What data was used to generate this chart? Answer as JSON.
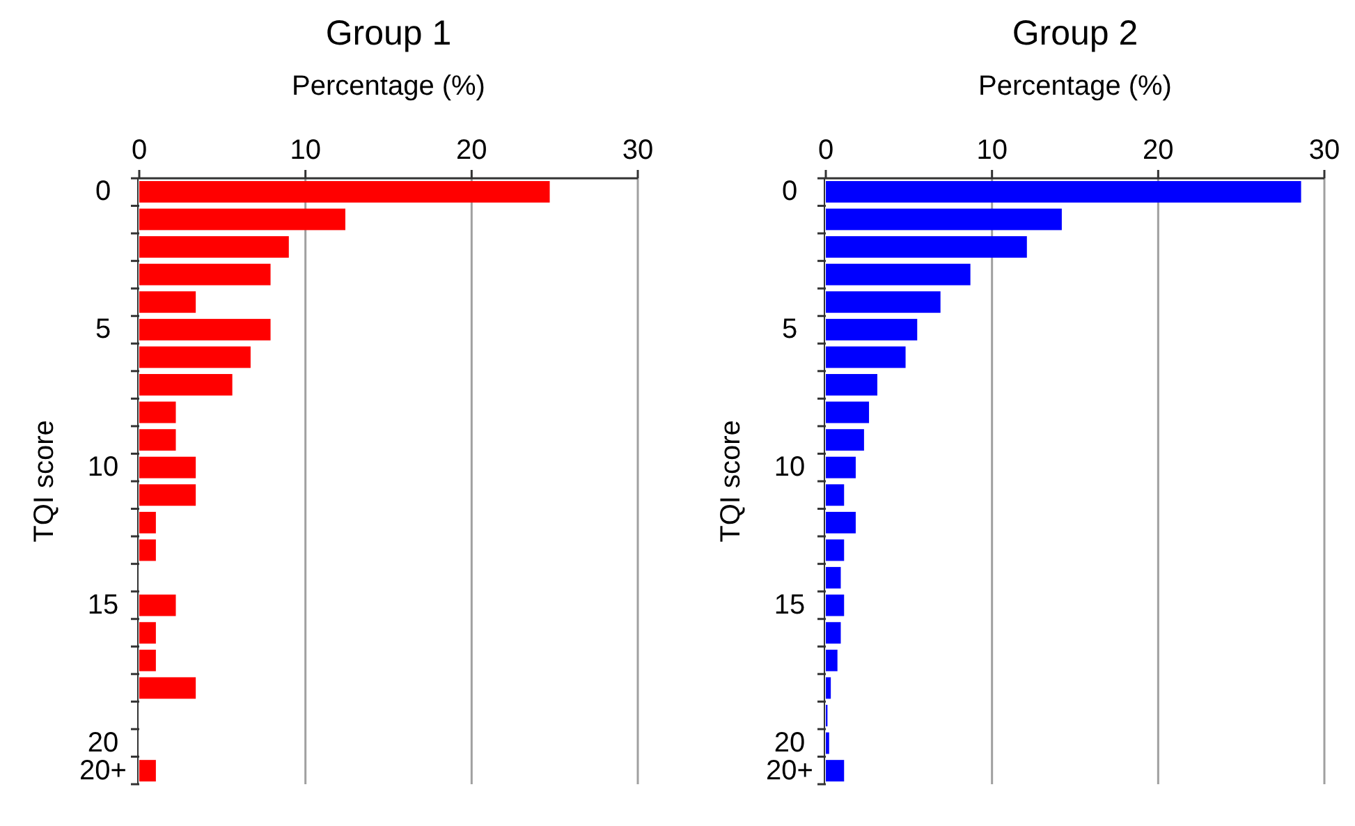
{
  "chart_data": [
    {
      "type": "bar",
      "orientation": "horizontal",
      "title": "Group 1",
      "xlabel": "Percentage (%)",
      "ylabel": "TQI score",
      "categories": [
        "0",
        null,
        null,
        null,
        null,
        "5",
        null,
        null,
        null,
        null,
        "10",
        null,
        null,
        null,
        null,
        "15",
        null,
        null,
        null,
        null,
        "20",
        "20+"
      ],
      "values": [
        24.7,
        12.4,
        9.0,
        7.9,
        3.4,
        7.9,
        6.7,
        5.6,
        2.2,
        2.2,
        3.4,
        3.4,
        1.0,
        1.0,
        0,
        2.2,
        1.0,
        1.0,
        3.4,
        0,
        0,
        1.0
      ],
      "color": "#ff0000",
      "xlim": [
        0,
        30
      ],
      "xticks": [
        0,
        10,
        20,
        30
      ],
      "grid": "x"
    },
    {
      "type": "bar",
      "orientation": "horizontal",
      "title": "Group 2",
      "xlabel": "Percentage (%)",
      "ylabel": "TQI score",
      "categories": [
        "0",
        null,
        null,
        null,
        null,
        "5",
        null,
        null,
        null,
        null,
        "10",
        null,
        null,
        null,
        null,
        "15",
        null,
        null,
        null,
        null,
        "20",
        "20+"
      ],
      "values": [
        28.6,
        14.2,
        12.1,
        8.7,
        6.9,
        5.5,
        4.8,
        3.1,
        2.6,
        2.3,
        1.8,
        1.1,
        1.8,
        1.1,
        0.9,
        1.1,
        0.9,
        0.7,
        0.3,
        0.1,
        0.2,
        1.1
      ],
      "color": "#0000ff",
      "xlim": [
        0,
        30
      ],
      "xticks": [
        0,
        10,
        20,
        30
      ],
      "grid": "x"
    }
  ]
}
